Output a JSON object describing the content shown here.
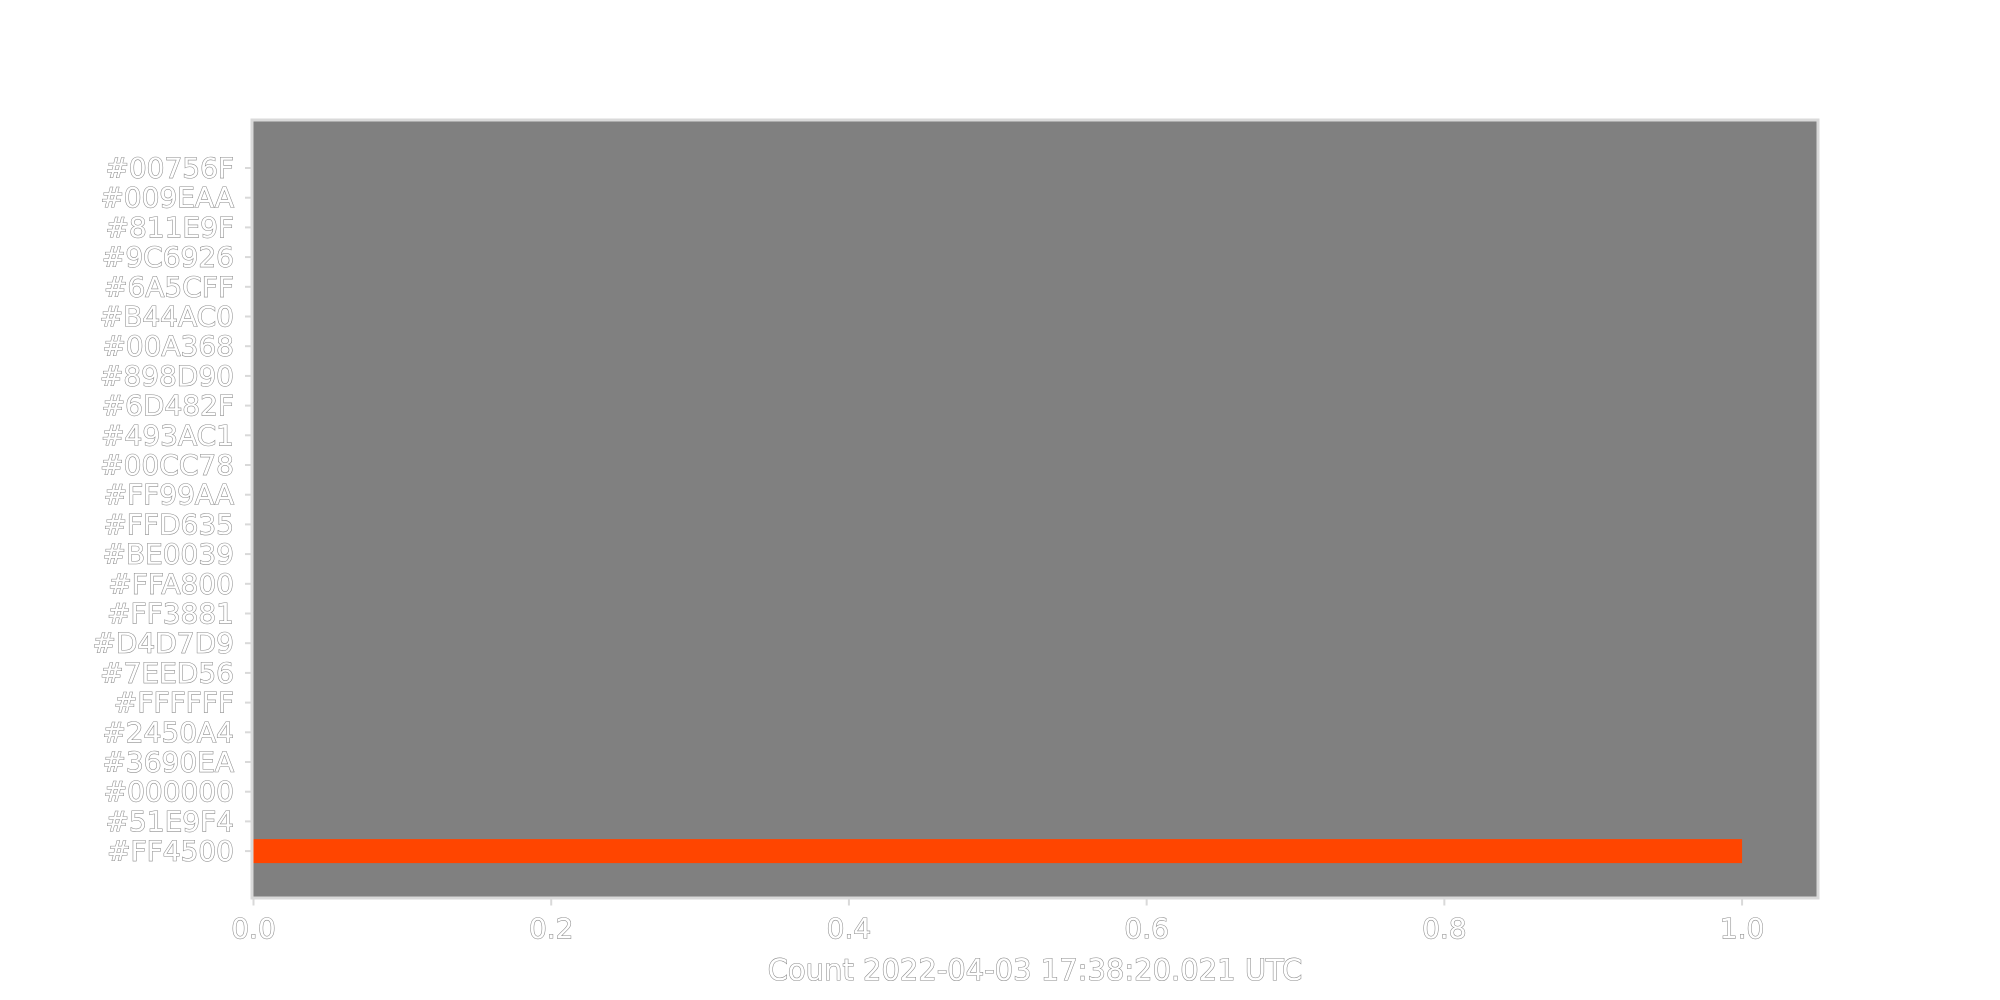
{
  "chart_data": {
    "type": "bar",
    "orientation": "horizontal",
    "title": "",
    "xlabel": "Count 2022-04-03 17:38:20.021 UTC",
    "ylabel": "",
    "xlim": [
      0,
      1.05
    ],
    "x_ticks": [
      "0.0",
      "0.2",
      "0.4",
      "0.6",
      "0.8",
      "1.0"
    ],
    "grid": false,
    "legend": "none",
    "colors": {
      "plot_background": "#808080",
      "frame": "#d9d9d9",
      "tick_text": "#ffffff",
      "text_outline": "#8a8a8a"
    },
    "categories": [
      "#00756F",
      "#009EAA",
      "#811E9F",
      "#9C6926",
      "#6A5CFF",
      "#B44AC0",
      "#00A368",
      "#898D90",
      "#6D482F",
      "#493AC1",
      "#00CC78",
      "#FF99AA",
      "#FFD635",
      "#BE0039",
      "#FFA800",
      "#FF3881",
      "#D4D7D9",
      "#7EED56",
      "#FFFFFF",
      "#2450A4",
      "#3690EA",
      "#000000",
      "#51E9F4",
      "#FF4500"
    ],
    "values": [
      0,
      0,
      0,
      0,
      0,
      0,
      0,
      0,
      0,
      0,
      0,
      0,
      0,
      0,
      0,
      0,
      0,
      0,
      0,
      0,
      0,
      0,
      0,
      1
    ],
    "bar_colors": [
      "#00756F",
      "#009EAA",
      "#811E9F",
      "#9C6926",
      "#6A5CFF",
      "#B44AC0",
      "#00A368",
      "#898D90",
      "#6D482F",
      "#493AC1",
      "#00CC78",
      "#FF99AA",
      "#FFD635",
      "#BE0039",
      "#FFA800",
      "#FF3881",
      "#D4D7D9",
      "#7EED56",
      "#FFFFFF",
      "#2450A4",
      "#3690EA",
      "#000000",
      "#51E9F4",
      "#FF4500"
    ]
  }
}
